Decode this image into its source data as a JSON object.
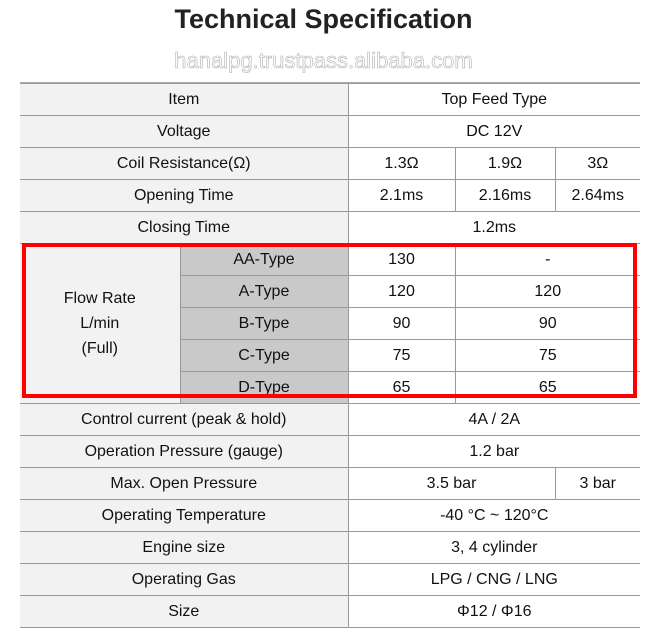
{
  "title": "Technical Specification",
  "watermark": "hanalpg.trustpass.alibaba.com",
  "highlight_color": "#ff0000",
  "header": {
    "item": "Item",
    "type": "Top Feed Type"
  },
  "voltage": {
    "label": "Voltage",
    "value": "DC 12V"
  },
  "coil": {
    "label": "Coil Resistance(Ω)",
    "values": [
      "1.3Ω",
      "1.9Ω",
      "3Ω"
    ]
  },
  "opening": {
    "label": "Opening Time",
    "values": [
      "2.1ms",
      "2.16ms",
      "2.64ms"
    ]
  },
  "closing": {
    "label": "Closing Time",
    "value": "1.2ms"
  },
  "flow": {
    "label_lines": [
      "Flow Rate",
      "L/min",
      "(Full)"
    ],
    "rows": [
      {
        "type": "AA-Type",
        "a": "130",
        "b": "-"
      },
      {
        "type": "A-Type",
        "a": "120",
        "b": "120"
      },
      {
        "type": "B-Type",
        "a": "90",
        "b": "90"
      },
      {
        "type": "C-Type",
        "a": "75",
        "b": "75"
      },
      {
        "type": "D-Type",
        "a": "65",
        "b": "65"
      }
    ]
  },
  "control": {
    "label": "Control current (peak & hold)",
    "value": "4A / 2A"
  },
  "pressure": {
    "label": "Operation Pressure (gauge)",
    "value": "1.2 bar"
  },
  "maxopen": {
    "label": "Max. Open Pressure",
    "values": [
      "3.5 bar",
      "3 bar"
    ]
  },
  "temp": {
    "label": "Operating Temperature",
    "value": "-40 °C ~ 120°C"
  },
  "engine": {
    "label": "Engine size",
    "value": "3, 4 cylinder"
  },
  "gas": {
    "label": "Operating Gas",
    "value": "LPG / CNG / LNG"
  },
  "size": {
    "label": "Size",
    "value": "Φ12 / Φ16"
  }
}
